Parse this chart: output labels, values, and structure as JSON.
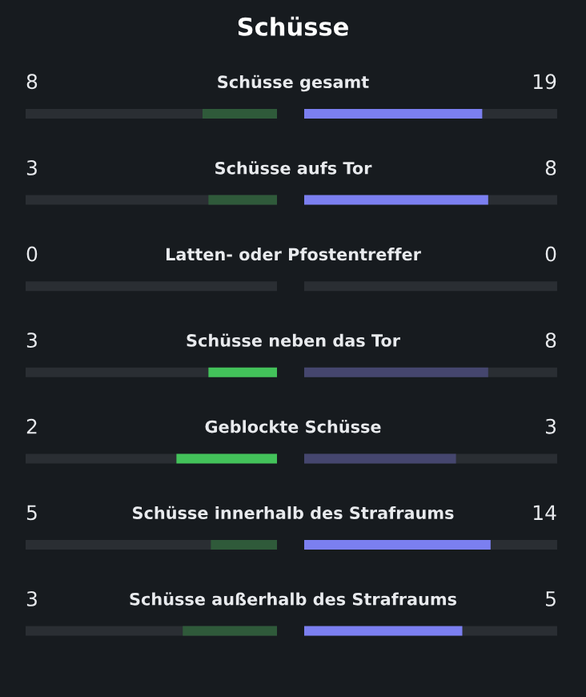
{
  "chart_data": {
    "type": "other",
    "title": "Schüsse",
    "data_labels": true,
    "categories": [
      "Schüsse gesamt",
      "Schüsse aufs Tor",
      "Latten- oder Pfostentreffer",
      "Schüsse neben das Tor",
      "Geblockte Schüsse",
      "Schüsse innerhalb des Strafraums",
      "Schüsse außerhalb des Strafraums"
    ],
    "series": [
      {
        "values": [
          8,
          3,
          0,
          3,
          2,
          5,
          3
        ],
        "colors": [
          "#2f5a3a",
          "#2f5a3a",
          "#2f5a3a",
          "#43c25a",
          "#43c25a",
          "#2f5a3a",
          "#2f5a3a"
        ]
      },
      {
        "values": [
          19,
          8,
          0,
          8,
          3,
          14,
          5
        ],
        "colors": [
          "#7b7ff0",
          "#7b7ff0",
          "#7b7ff0",
          "#45466e",
          "#45466e",
          "#7b7ff0",
          "#7b7ff0"
        ]
      }
    ]
  }
}
